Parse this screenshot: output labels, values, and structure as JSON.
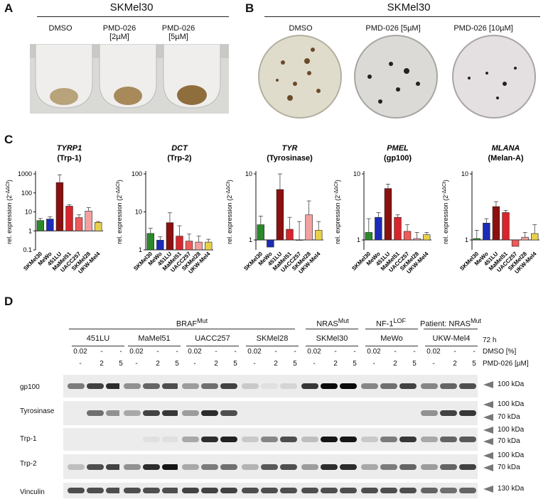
{
  "panel_letters": {
    "a": "A",
    "b": "B",
    "c": "C",
    "d": "D"
  },
  "panel_a": {
    "title": "SKMel30",
    "tubes": [
      {
        "l1": "DMSO",
        "l2": ""
      },
      {
        "l1": "PMD-026",
        "l2": "[2µM]"
      },
      {
        "l1": "PMD-026",
        "l2": "[5µM]"
      }
    ]
  },
  "panel_b": {
    "title": "SKMel30",
    "plates": [
      "DMSO",
      "PMD-026 [5µM]",
      "PMD-026 [10µM]"
    ]
  },
  "panel_c": {
    "y_label_prefix": "rel. expression (2",
    "y_label_sup": "-ΔΔCt",
    "y_label_suffix": ")",
    "categories": [
      "SKMel30",
      "MeWo",
      "451LU",
      "MaMel51",
      "UACC257",
      "SKMel28",
      "UKW-Mel4"
    ],
    "colors": [
      "#2a8a2a",
      "#1c2bb8",
      "#8c1010",
      "#d8242a",
      "#f05a5a",
      "#f3a0a0",
      "#e8d048"
    ],
    "charts": [
      {
        "gene": "TYRP1",
        "protein": "(Trp-1)",
        "ticks": [
          "1000",
          "100",
          "10",
          "1",
          "0.1"
        ],
        "log_min": -1,
        "log_max": 3,
        "values": [
          3.5,
          4.2,
          350,
          20,
          5,
          11,
          2.8
        ],
        "err": [
          4.5,
          5.5,
          900,
          24,
          7,
          17,
          3.1
        ]
      },
      {
        "gene": "DCT",
        "protein": "(Trp-2)",
        "ticks": [
          "100",
          "10",
          "1"
        ],
        "log_min": 0,
        "log_max": 2,
        "values": [
          2.7,
          1.8,
          5.2,
          2.3,
          1.7,
          1.6,
          1.6
        ],
        "err": [
          3.7,
          2.2,
          9.5,
          4.3,
          2.6,
          2.3,
          1.9
        ]
      },
      {
        "gene": "TYR",
        "protein": "(Tyrosinase)",
        "ticks": [
          "10",
          "1"
        ],
        "log_min": -0.15,
        "log_max": 1,
        "values": [
          1.7,
          0.78,
          5.8,
          1.45,
          1.0,
          2.4,
          1.4
        ],
        "err": [
          2.3,
          0.78,
          10,
          2.2,
          1.9,
          3.9,
          1.9
        ]
      },
      {
        "gene": "PMEL",
        "protein": "(gp100)",
        "ticks": [
          "10",
          "1"
        ],
        "log_min": -0.15,
        "log_max": 1,
        "values": [
          1.3,
          2.2,
          6.0,
          2.2,
          1.35,
          1.05,
          1.2
        ],
        "err": [
          2.1,
          2.6,
          7.0,
          2.4,
          1.7,
          1.3,
          1.3
        ]
      },
      {
        "gene": "MLANA",
        "protein": "(Melan-A)",
        "ticks": [
          "10",
          "1"
        ],
        "log_min": -0.15,
        "log_max": 1,
        "values": [
          1.05,
          1.8,
          3.2,
          2.6,
          0.8,
          1.1,
          1.25
        ],
        "err": [
          1.4,
          2.1,
          3.8,
          2.8,
          0.82,
          1.3,
          1.7
        ]
      }
    ]
  },
  "panel_d": {
    "groups": [
      {
        "label": "BRAF",
        "sup": "Mut"
      },
      {
        "label": "NRAS",
        "sup": "Mut"
      },
      {
        "label": "NF-1",
        "sup": "LOF"
      },
      {
        "label": "Patient: NRAS",
        "sup": "Mut"
      }
    ],
    "cell_lines": [
      "451LU",
      "MaMel51",
      "UACC257",
      "SKMel28",
      "SKMel30",
      "MeWo",
      "UKW-Mel4"
    ],
    "time": "72 h",
    "dmso_row": {
      "values": [
        "0.02",
        "-",
        "-"
      ],
      "label": "DMSO [%]"
    },
    "pmd_row": {
      "values": [
        "-",
        "2",
        "5"
      ],
      "label": "PMD-026 [µM]"
    },
    "proteins": [
      "gp100",
      "Tyrosinase",
      "Trp-1",
      "Trp-2",
      "Vinculin"
    ],
    "markers": [
      "100 kDa",
      "100 kDa",
      "70 kDa",
      "100 kDa",
      "70 kDa",
      "100 kDa",
      "70 kDa",
      "130 kDa"
    ]
  }
}
